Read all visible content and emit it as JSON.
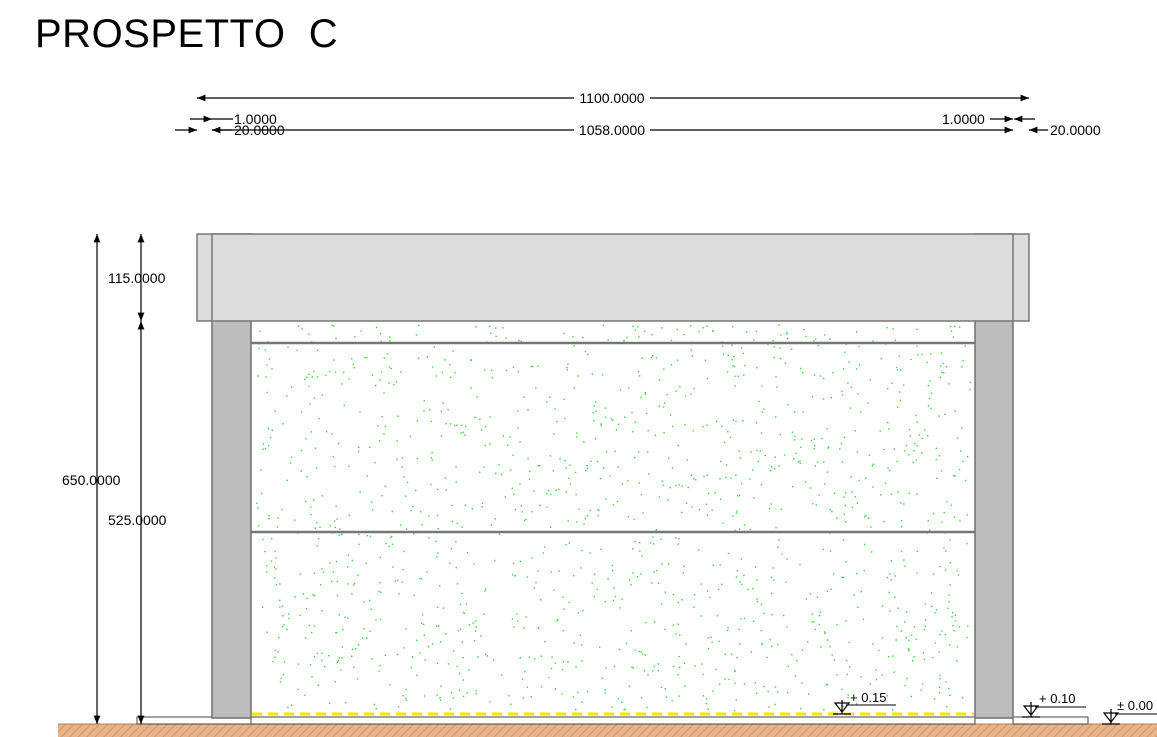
{
  "title": "PROSPETTO  C",
  "dimensions": {
    "total_width": "1100.0000",
    "left_overhang": "1.0000",
    "left_column": "20.0000",
    "inner_width": "1058.0000",
    "right_overhang": "1.0000",
    "right_column": "20.0000",
    "total_height": "650.0000",
    "beam_height": "115.0000",
    "wall_height": "525.0000"
  },
  "levels": {
    "inner_floor": "+ 0.15",
    "sidewalk": "+ 0.10",
    "ground": "± 0.00"
  },
  "colors": {
    "roof_fill": "#dcdcdc",
    "column_fill": "#bdbdbd",
    "hatch_dots": "#3cd43c",
    "ground_strip": "#e8b48a",
    "floor_dash": "#f0e600",
    "outline": "#777777"
  },
  "icons": [
    "level-marker-icon"
  ]
}
